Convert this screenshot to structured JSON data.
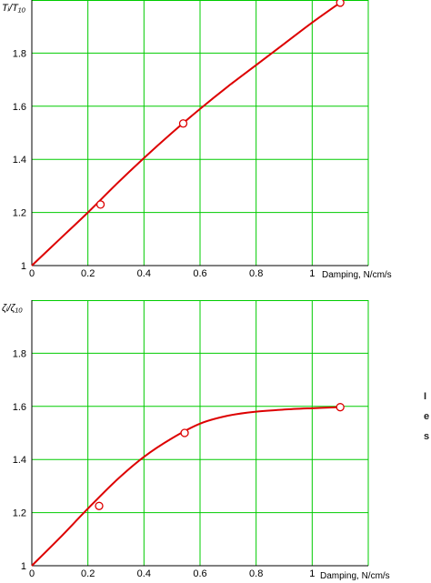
{
  "colors": {
    "grid": "#00cc00",
    "curve": "#dd0000",
    "marker": "#dd0000",
    "axis": "#000000",
    "background": "#ffffff"
  },
  "chart_data": [
    {
      "type": "line",
      "ylabel": "Tᵢ/T₁₀",
      "xlabel": "Damping, N/cm/s",
      "xlim": [
        0,
        1.2
      ],
      "ylim": [
        1,
        2
      ],
      "xticks": [
        0,
        0.2,
        0.4,
        0.6,
        0.8,
        1
      ],
      "xtick_labels": [
        "0",
        "0.2",
        "0.4",
        "0.6",
        "0.8",
        "1"
      ],
      "yticks": [
        1,
        1.2,
        1.4,
        1.6,
        1.8
      ],
      "ytick_labels": [
        "1",
        "1.2",
        "1.4",
        "1.6",
        "1.8"
      ],
      "grid": true,
      "series": [
        {
          "kind": "fitted-curve",
          "x": [
            0,
            0.1,
            0.2,
            0.3,
            0.4,
            0.5,
            0.6,
            0.7,
            0.8,
            0.9,
            1.0,
            1.1
          ],
          "y": [
            1.0,
            1.1,
            1.2,
            1.305,
            1.405,
            1.5,
            1.59,
            1.675,
            1.755,
            1.835,
            1.915,
            1.99
          ]
        },
        {
          "kind": "measured-points",
          "x": [
            0.245,
            0.54,
            1.1
          ],
          "y": [
            1.23,
            1.535,
            1.99
          ]
        }
      ]
    },
    {
      "type": "line",
      "ylabel": "ζᵢ/ζ₁₀",
      "xlabel": "Damping, N/cm/s",
      "xlim": [
        0,
        1.2
      ],
      "ylim": [
        1,
        2
      ],
      "xticks": [
        0,
        0.2,
        0.4,
        0.6,
        0.8,
        1
      ],
      "xtick_labels": [
        "0",
        "0.2",
        "0.4",
        "0.6",
        "0.8",
        "1"
      ],
      "yticks": [
        1,
        1.2,
        1.4,
        1.6,
        1.8
      ],
      "ytick_labels": [
        "1",
        "1.2",
        "1.4",
        "1.6",
        "1.8"
      ],
      "grid": true,
      "series": [
        {
          "kind": "fitted-curve",
          "x": [
            0,
            0.1,
            0.2,
            0.3,
            0.4,
            0.5,
            0.6,
            0.7,
            0.8,
            0.9,
            1.0,
            1.1
          ],
          "y": [
            1.0,
            1.105,
            1.215,
            1.32,
            1.41,
            1.48,
            1.535,
            1.565,
            1.58,
            1.588,
            1.593,
            1.597
          ]
        },
        {
          "kind": "measured-points",
          "x": [
            0.24,
            0.545,
            1.1
          ],
          "y": [
            1.225,
            1.5,
            1.597
          ]
        }
      ]
    }
  ],
  "edge_text": [
    "I",
    "e",
    "s"
  ]
}
